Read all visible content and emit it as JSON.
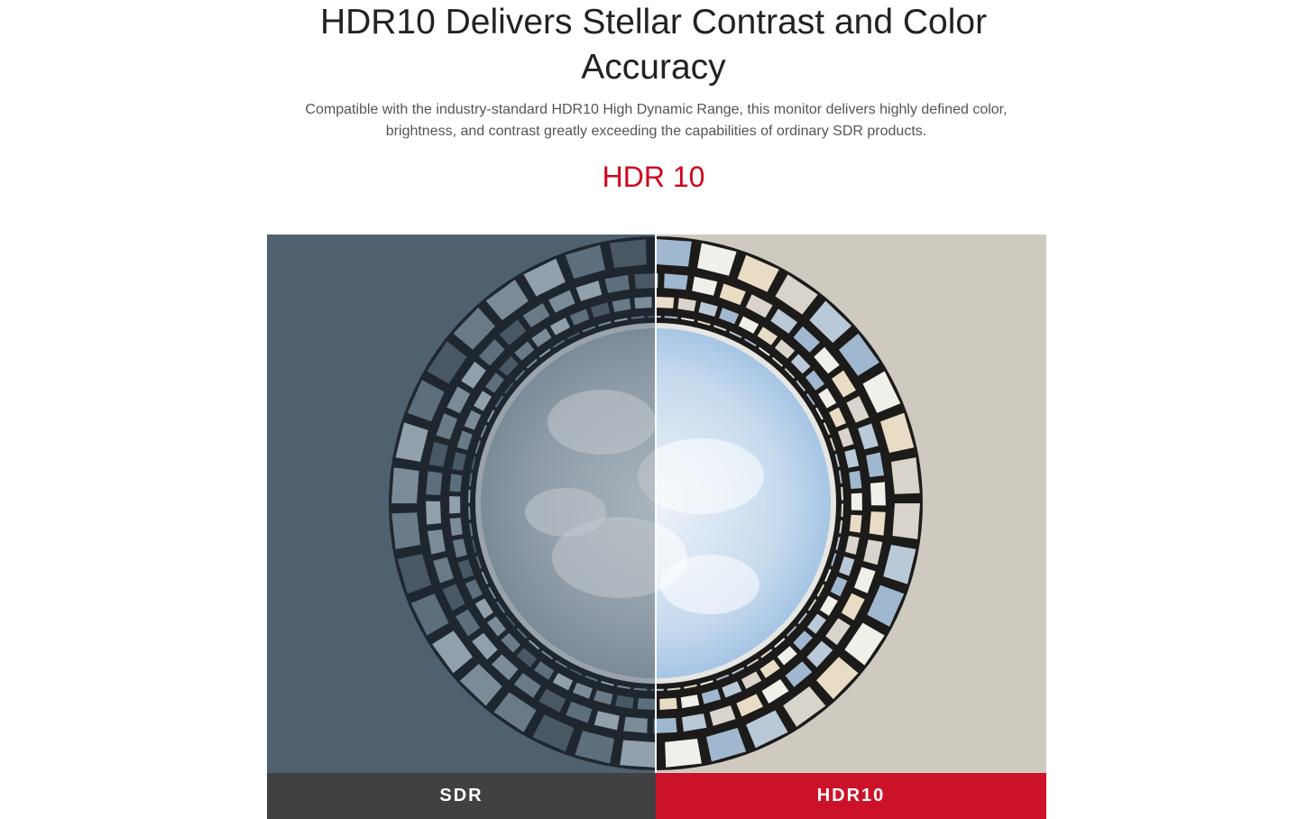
{
  "header": {
    "title_line1": "HDR10 Delivers Stellar Contrast and Color",
    "title_line2": "Accuracy",
    "description": "Compatible with the industry-standard HDR10 High Dynamic Range, this monitor delivers highly defined color, brightness, and contrast greatly exceeding the capabilities of ordinary SDR products.",
    "subheading": "HDR 10"
  },
  "comparison": {
    "left_label": "SDR",
    "right_label": "HDR10"
  },
  "colors": {
    "accent": "#d0021b",
    "sdr_bar": "#414143",
    "hdr_bar": "#cc1229"
  }
}
